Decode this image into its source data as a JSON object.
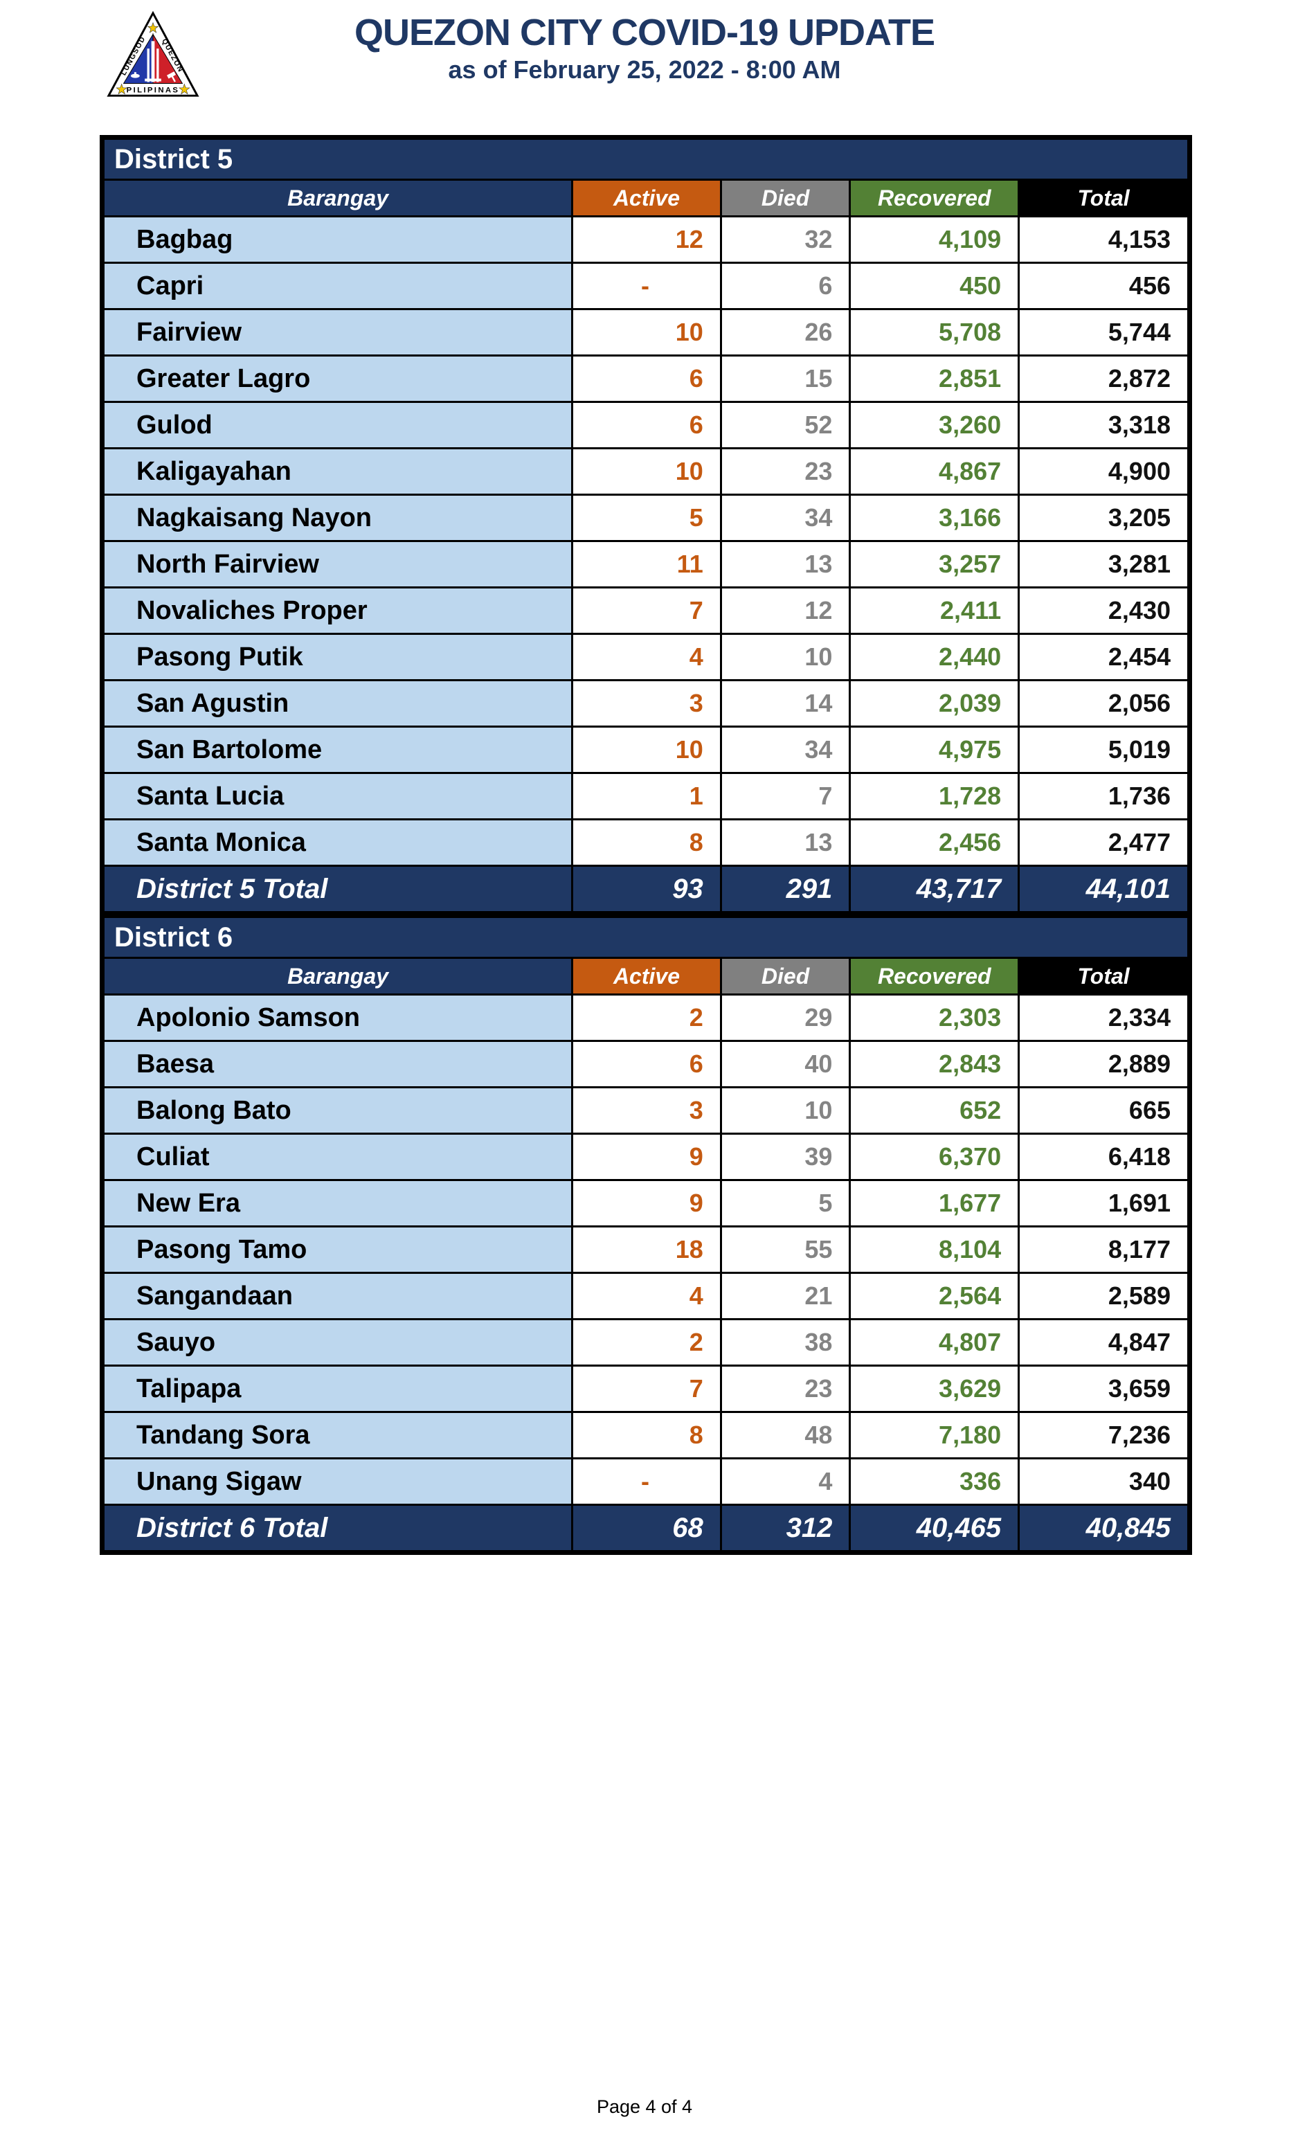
{
  "page": {
    "title": "QUEZON CITY COVID-19 UPDATE",
    "subtitle": "as of February 25, 2022 - 8:00 AM",
    "footer": "Page 4 of 4"
  },
  "logo": {
    "left_label": "LUNGSOD",
    "right_label": "QUEZON",
    "bottom_label": "PILIPINAS"
  },
  "columns": [
    "Barangay",
    "Active",
    "Died",
    "Recovered",
    "Total"
  ],
  "colors": {
    "navy": "#1F3864",
    "light_blue": "#BDD7EE",
    "active_orange": "#C55A11",
    "died_gray": "#808080",
    "recovered_green": "#538135",
    "total_black": "#000000"
  },
  "tables": [
    {
      "district": "District 5",
      "rows": [
        [
          "Bagbag",
          "12",
          "32",
          "4,109",
          "4,153"
        ],
        [
          "Capri",
          "-",
          "6",
          "450",
          "456"
        ],
        [
          "Fairview",
          "10",
          "26",
          "5,708",
          "5,744"
        ],
        [
          "Greater Lagro",
          "6",
          "15",
          "2,851",
          "2,872"
        ],
        [
          "Gulod",
          "6",
          "52",
          "3,260",
          "3,318"
        ],
        [
          "Kaligayahan",
          "10",
          "23",
          "4,867",
          "4,900"
        ],
        [
          "Nagkaisang Nayon",
          "5",
          "34",
          "3,166",
          "3,205"
        ],
        [
          "North Fairview",
          "11",
          "13",
          "3,257",
          "3,281"
        ],
        [
          "Novaliches Proper",
          "7",
          "12",
          "2,411",
          "2,430"
        ],
        [
          "Pasong Putik",
          "4",
          "10",
          "2,440",
          "2,454"
        ],
        [
          "San Agustin",
          "3",
          "14",
          "2,039",
          "2,056"
        ],
        [
          "San Bartolome",
          "10",
          "34",
          "4,975",
          "5,019"
        ],
        [
          "Santa Lucia",
          "1",
          "7",
          "1,728",
          "1,736"
        ],
        [
          "Santa Monica",
          "8",
          "13",
          "2,456",
          "2,477"
        ]
      ],
      "total": [
        "District 5 Total",
        "93",
        "291",
        "43,717",
        "44,101"
      ]
    },
    {
      "district": "District 6",
      "rows": [
        [
          "Apolonio Samson",
          "2",
          "29",
          "2,303",
          "2,334"
        ],
        [
          "Baesa",
          "6",
          "40",
          "2,843",
          "2,889"
        ],
        [
          "Balong Bato",
          "3",
          "10",
          "652",
          "665"
        ],
        [
          "Culiat",
          "9",
          "39",
          "6,370",
          "6,418"
        ],
        [
          "New Era",
          "9",
          "5",
          "1,677",
          "1,691"
        ],
        [
          "Pasong Tamo",
          "18",
          "55",
          "8,104",
          "8,177"
        ],
        [
          "Sangandaan",
          "4",
          "21",
          "2,564",
          "2,589"
        ],
        [
          "Sauyo",
          "2",
          "38",
          "4,807",
          "4,847"
        ],
        [
          "Talipapa",
          "7",
          "23",
          "3,629",
          "3,659"
        ],
        [
          "Tandang Sora",
          "8",
          "48",
          "7,180",
          "7,236"
        ],
        [
          "Unang Sigaw",
          "-",
          "4",
          "336",
          "340"
        ]
      ],
      "total": [
        "District 6 Total",
        "68",
        "312",
        "40,465",
        "40,845"
      ]
    }
  ]
}
